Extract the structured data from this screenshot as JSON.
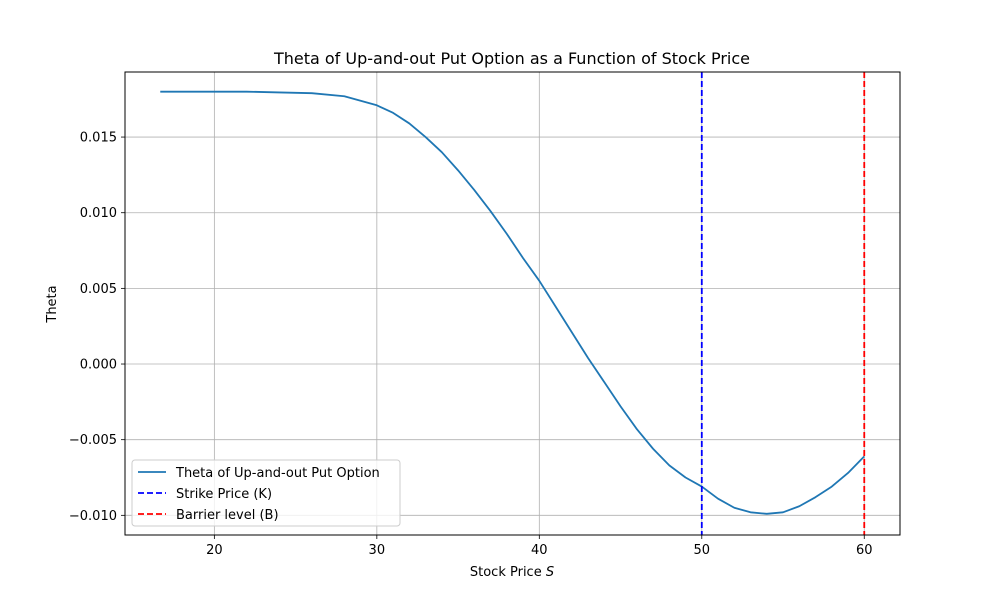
{
  "chart_data": {
    "type": "line",
    "title": "Theta of Up-and-out Put Option as a Function of Stock Price",
    "xlabel": "Stock Price",
    "xlabel_symbol": "S",
    "ylabel": "Theta",
    "xlim": [
      14.5,
      62.2
    ],
    "ylim": [
      -0.0113,
      0.0193
    ],
    "xticks": [
      20,
      30,
      40,
      50,
      60
    ],
    "xtick_labels": [
      "20",
      "30",
      "40",
      "50",
      "60"
    ],
    "yticks": [
      -0.01,
      -0.005,
      0.0,
      0.005,
      0.01,
      0.015
    ],
    "ytick_labels": [
      "−0.010",
      "−0.005",
      "0.000",
      "0.005",
      "0.010",
      "0.015"
    ],
    "grid": true,
    "legend_position": "lower-left",
    "series": [
      {
        "name": "Theta of Up-and-out Put Option",
        "color": "#1f77b4",
        "style": "solid",
        "x": [
          16.67,
          18,
          20,
          22,
          24,
          26,
          28,
          30,
          31,
          32,
          33,
          34,
          35,
          36,
          37,
          38,
          39,
          40,
          41,
          42,
          43,
          44,
          45,
          46,
          47,
          48,
          49,
          50,
          51,
          52,
          53,
          54,
          55,
          56,
          57,
          58,
          59,
          60
        ],
        "y": [
          0.018,
          0.018,
          0.018,
          0.018,
          0.01795,
          0.0179,
          0.0177,
          0.0171,
          0.0166,
          0.0159,
          0.015,
          0.014,
          0.0128,
          0.0115,
          0.0101,
          0.0086,
          0.007,
          0.0055,
          0.0038,
          0.0021,
          0.0004,
          -0.0012,
          -0.0028,
          -0.0043,
          -0.0056,
          -0.0067,
          -0.0075,
          -0.0081,
          -0.0089,
          -0.0095,
          -0.0098,
          -0.0099,
          -0.0098,
          -0.0094,
          -0.0088,
          -0.0081,
          -0.0072,
          -0.0061
        ]
      },
      {
        "name": "Strike Price (K)",
        "color": "#0000ff",
        "style": "dashed",
        "vline": 50
      },
      {
        "name": "Barrier level (B)",
        "color": "#ff0000",
        "style": "dashed",
        "vline": 60
      }
    ]
  }
}
